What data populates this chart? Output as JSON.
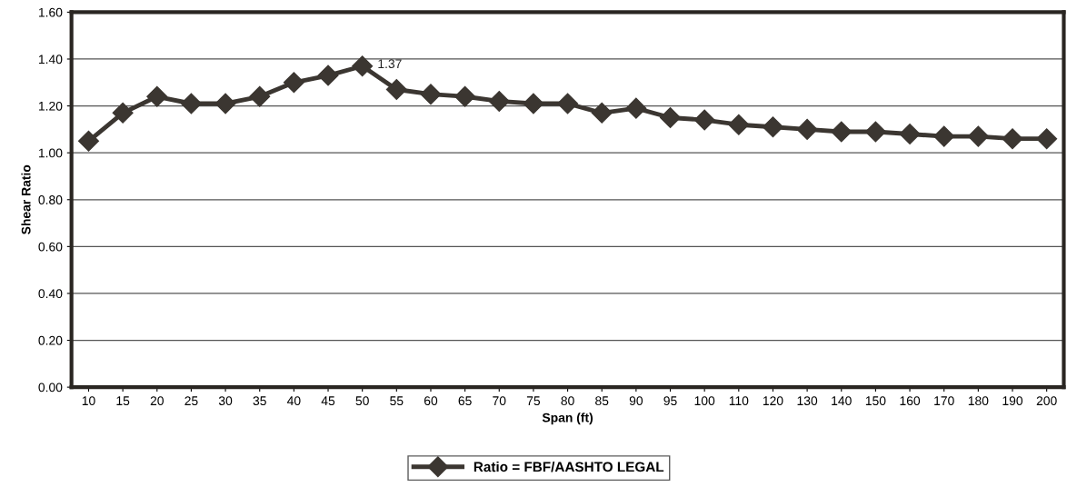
{
  "chart_data": {
    "type": "line",
    "xlabel": "Span (ft)",
    "ylabel": "Shear Ratio",
    "categories": [
      "10",
      "15",
      "20",
      "25",
      "30",
      "35",
      "40",
      "45",
      "50",
      "55",
      "60",
      "65",
      "70",
      "75",
      "80",
      "85",
      "90",
      "95",
      "100",
      "110",
      "120",
      "130",
      "140",
      "150",
      "160",
      "170",
      "180",
      "190",
      "200"
    ],
    "series": [
      {
        "name": "Ratio = FBF/AASHTO LEGAL",
        "color": "#3b3631",
        "values": [
          1.05,
          1.17,
          1.24,
          1.21,
          1.21,
          1.24,
          1.3,
          1.33,
          1.37,
          1.27,
          1.25,
          1.24,
          1.22,
          1.21,
          1.21,
          1.17,
          1.19,
          1.15,
          1.14,
          1.12,
          1.11,
          1.1,
          1.09,
          1.09,
          1.08,
          1.07,
          1.07,
          1.06,
          1.06
        ],
        "value_labels": [
          null,
          null,
          null,
          null,
          null,
          null,
          null,
          null,
          "1.37",
          null,
          null,
          null,
          null,
          null,
          null,
          null,
          null,
          null,
          null,
          null,
          null,
          null,
          null,
          null,
          null,
          null,
          null,
          null,
          null
        ]
      }
    ],
    "ylim": [
      0,
      1.6
    ],
    "yticks": [
      {
        "value": 0,
        "label": "0.00"
      },
      {
        "value": 0.2,
        "label": "0.20"
      },
      {
        "value": 0.4,
        "label": "0.40"
      },
      {
        "value": 0.6,
        "label": "0.60"
      },
      {
        "value": 0.8,
        "label": "0.80"
      },
      {
        "value": 1.0,
        "label": "1.00"
      },
      {
        "value": 1.2,
        "label": "1.20"
      },
      {
        "value": 1.4,
        "label": "1.40"
      },
      {
        "value": 1.6,
        "label": "1.60"
      }
    ],
    "grid": "y",
    "legend": "bottom",
    "marker": "diamond",
    "line_style": "solid"
  }
}
